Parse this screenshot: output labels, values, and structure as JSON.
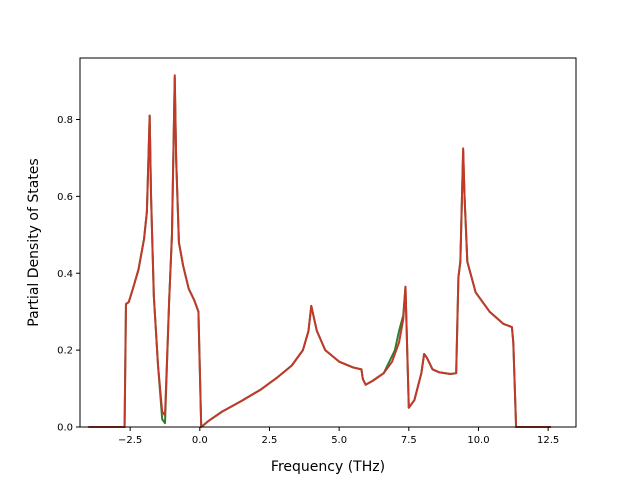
{
  "chart_data": {
    "type": "line",
    "title": "",
    "xlabel": "Frequency (THz)",
    "ylabel": "Partial Density of States",
    "xlim": [
      -4.3,
      13.5
    ],
    "ylim": [
      0,
      0.96
    ],
    "xticks": [
      -2.5,
      0.0,
      2.5,
      5.0,
      7.5,
      10.0,
      12.5
    ],
    "xtick_labels": [
      "−2.5",
      "0.0",
      "2.5",
      "5.0",
      "7.5",
      "10.0",
      "12.5"
    ],
    "yticks": [
      0.0,
      0.2,
      0.4,
      0.6,
      0.8
    ],
    "ytick_labels": [
      "0.0",
      "0.2",
      "0.4",
      "0.6",
      "0.8"
    ],
    "grid": false,
    "legend": "none",
    "series": [
      {
        "color": "#2e7d32",
        "x": [
          -4.0,
          -2.7,
          -2.65,
          -2.55,
          -2.4,
          -2.2,
          -2.0,
          -1.9,
          -1.8,
          -1.75,
          -1.65,
          -1.5,
          -1.35,
          -1.25,
          -1.1,
          -1.0,
          -0.9,
          -0.85,
          -0.75,
          -0.6,
          -0.4,
          -0.2,
          -0.05,
          0.05,
          0.3,
          0.8,
          1.5,
          2.2,
          2.8,
          3.3,
          3.7,
          3.9,
          4.0,
          4.2,
          4.5,
          5.0,
          5.5,
          5.8,
          5.85,
          5.95,
          6.2,
          6.6,
          6.9,
          7.0,
          7.15,
          7.3,
          7.38,
          7.5,
          7.7,
          7.95,
          8.05,
          8.15,
          8.35,
          8.6,
          9.0,
          9.2,
          9.28,
          9.35,
          9.45,
          9.5,
          9.6,
          9.9,
          10.4,
          10.9,
          11.2,
          11.25,
          11.35,
          12.6
        ],
        "y": [
          0.0,
          0.0,
          0.32,
          0.325,
          0.36,
          0.41,
          0.49,
          0.56,
          0.81,
          0.6,
          0.34,
          0.16,
          0.02,
          0.01,
          0.33,
          0.5,
          0.91,
          0.7,
          0.48,
          0.42,
          0.36,
          0.33,
          0.3,
          0.0,
          0.015,
          0.04,
          0.068,
          0.098,
          0.13,
          0.16,
          0.2,
          0.25,
          0.315,
          0.25,
          0.2,
          0.17,
          0.155,
          0.15,
          0.125,
          0.11,
          0.12,
          0.14,
          0.185,
          0.2,
          0.25,
          0.29,
          0.365,
          0.05,
          0.07,
          0.14,
          0.19,
          0.18,
          0.15,
          0.142,
          0.138,
          0.14,
          0.39,
          0.43,
          0.72,
          0.6,
          0.43,
          0.35,
          0.3,
          0.268,
          0.26,
          0.22,
          0.0,
          0.0
        ]
      },
      {
        "color": "#c0392b",
        "x": [
          -4.0,
          -2.7,
          -2.65,
          -2.55,
          -2.4,
          -2.2,
          -2.0,
          -1.9,
          -1.8,
          -1.75,
          -1.65,
          -1.5,
          -1.35,
          -1.25,
          -1.1,
          -1.0,
          -0.9,
          -0.85,
          -0.75,
          -0.6,
          -0.4,
          -0.2,
          -0.05,
          0.05,
          0.3,
          0.8,
          1.5,
          2.2,
          2.8,
          3.3,
          3.7,
          3.9,
          4.0,
          4.2,
          4.5,
          5.0,
          5.5,
          5.8,
          5.85,
          5.95,
          6.2,
          6.6,
          6.9,
          7.0,
          7.15,
          7.3,
          7.38,
          7.5,
          7.7,
          7.95,
          8.05,
          8.15,
          8.35,
          8.6,
          9.0,
          9.2,
          9.28,
          9.35,
          9.45,
          9.5,
          9.6,
          9.9,
          10.4,
          10.9,
          11.2,
          11.25,
          11.35,
          12.6
        ],
        "y": [
          0.0,
          0.0,
          0.32,
          0.325,
          0.36,
          0.41,
          0.49,
          0.56,
          0.81,
          0.6,
          0.34,
          0.16,
          0.04,
          0.03,
          0.33,
          0.5,
          0.915,
          0.7,
          0.48,
          0.42,
          0.36,
          0.33,
          0.3,
          0.0,
          0.015,
          0.04,
          0.068,
          0.098,
          0.13,
          0.16,
          0.2,
          0.25,
          0.315,
          0.25,
          0.2,
          0.17,
          0.155,
          0.15,
          0.125,
          0.11,
          0.12,
          0.14,
          0.17,
          0.19,
          0.22,
          0.28,
          0.365,
          0.05,
          0.07,
          0.14,
          0.19,
          0.18,
          0.15,
          0.142,
          0.138,
          0.14,
          0.39,
          0.43,
          0.725,
          0.6,
          0.43,
          0.35,
          0.3,
          0.268,
          0.26,
          0.22,
          0.0,
          0.0
        ]
      }
    ]
  }
}
